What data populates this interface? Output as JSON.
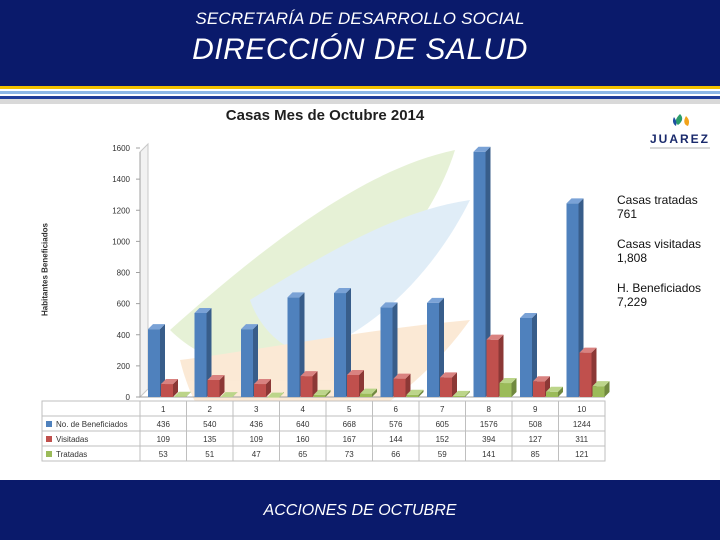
{
  "header": {
    "org": "SECRETARÍA DE DESARROLLO SOCIAL",
    "dept": "DIRECCIÓN DE SALUD"
  },
  "footer": {
    "text": "ACCIONES DE OCTUBRE"
  },
  "logo": {
    "text": "JUAREZ",
    "icon": "juarez-logo-icon"
  },
  "side_labels": [
    {
      "label": "Casas tratadas",
      "value": "761"
    },
    {
      "label": "Casas visitadas",
      "value": "1,808"
    },
    {
      "label": "H. Beneficiados",
      "value": "7,229"
    }
  ],
  "colors": {
    "navy": "#0a1a6b",
    "series1": "#4f81bd",
    "series2": "#c0504d",
    "series3": "#9bbb59"
  },
  "chart_data": {
    "type": "bar",
    "title": "Casas Mes de Octubre 2014",
    "ylabel": "Habitantes Beneficiados",
    "ylim": [
      0,
      1600
    ],
    "yticks": [
      0,
      200,
      400,
      600,
      800,
      1000,
      1200,
      1400,
      1600
    ],
    "grid": false,
    "legend": "table-below",
    "categories": [
      "1",
      "2",
      "3",
      "4",
      "5",
      "6",
      "7",
      "8",
      "9",
      "10"
    ],
    "series": [
      {
        "name": "No. de Beneficiados",
        "values": [
          436,
          540,
          436,
          640,
          668,
          576,
          605,
          1576,
          508,
          1244
        ]
      },
      {
        "name": "Visitadas",
        "values": [
          109,
          135,
          109,
          160,
          167,
          144,
          152,
          394,
          127,
          311
        ]
      },
      {
        "name": "Tratadas",
        "values": [
          53,
          51,
          47,
          65,
          73,
          66,
          59,
          141,
          85,
          121
        ]
      }
    ]
  }
}
